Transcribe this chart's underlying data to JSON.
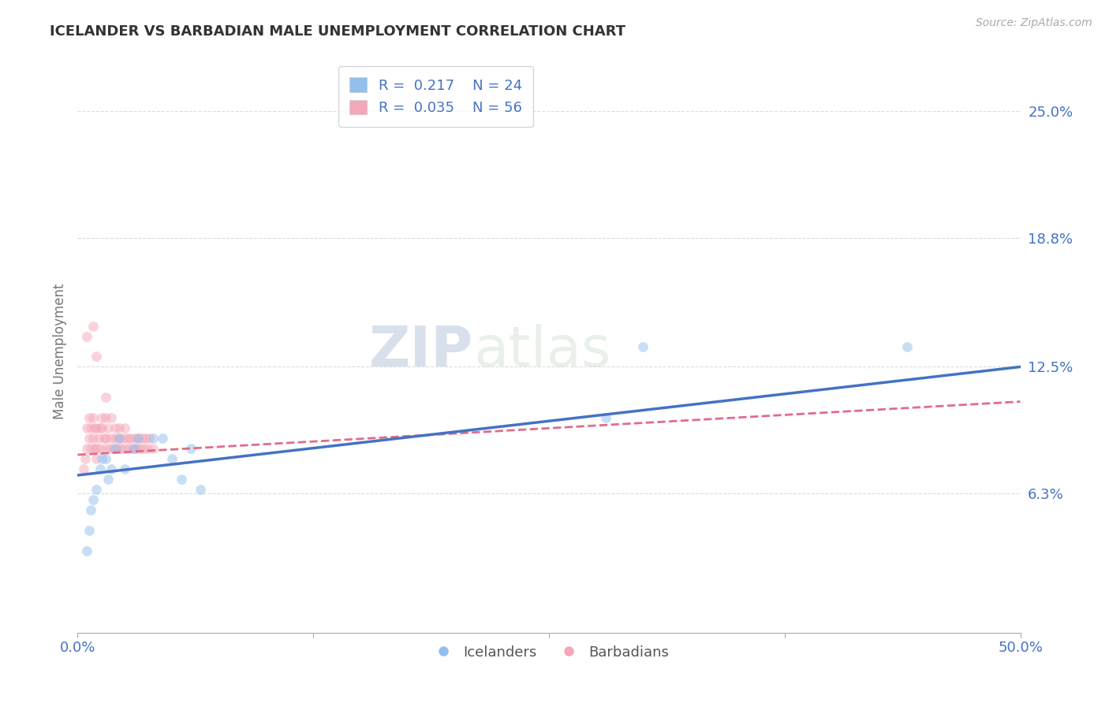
{
  "title": "ICELANDER VS BARBADIAN MALE UNEMPLOYMENT CORRELATION CHART",
  "source": "Source: ZipAtlas.com",
  "xlabel_label": "Icelanders",
  "xlabel_label2": "Barbadians",
  "ylabel": "Male Unemployment",
  "xlim": [
    0.0,
    0.5
  ],
  "ylim": [
    -0.005,
    0.27
  ],
  "xticks": [
    0.0,
    0.125,
    0.25,
    0.375,
    0.5
  ],
  "xticklabels": [
    "0.0%",
    "",
    "",
    "",
    "50.0%"
  ],
  "ytick_positions": [
    0.063,
    0.125,
    0.188,
    0.25
  ],
  "ytick_labels": [
    "6.3%",
    "12.5%",
    "18.8%",
    "25.0%"
  ],
  "icelanders_R": "0.217",
  "icelanders_N": "24",
  "barbadians_R": "0.035",
  "barbadians_N": "56",
  "icelander_color": "#92BFED",
  "barbadian_color": "#F4A7B9",
  "icelander_line_color": "#4472C4",
  "barbadian_line_color": "#E06C8A",
  "watermark_zip": "ZIP",
  "watermark_atlas": "atlas",
  "icelanders_x": [
    0.005,
    0.006,
    0.007,
    0.008,
    0.01,
    0.012,
    0.013,
    0.015,
    0.016,
    0.018,
    0.02,
    0.022,
    0.025,
    0.03,
    0.032,
    0.04,
    0.045,
    0.05,
    0.055,
    0.06,
    0.065,
    0.3,
    0.44,
    0.28
  ],
  "icelanders_y": [
    0.035,
    0.045,
    0.055,
    0.06,
    0.065,
    0.075,
    0.08,
    0.08,
    0.07,
    0.075,
    0.085,
    0.09,
    0.075,
    0.085,
    0.09,
    0.09,
    0.09,
    0.08,
    0.07,
    0.085,
    0.065,
    0.135,
    0.135,
    0.1
  ],
  "barbadians_x": [
    0.003,
    0.004,
    0.005,
    0.005,
    0.006,
    0.006,
    0.007,
    0.007,
    0.008,
    0.008,
    0.009,
    0.009,
    0.01,
    0.01,
    0.01,
    0.011,
    0.012,
    0.012,
    0.013,
    0.013,
    0.014,
    0.015,
    0.015,
    0.015,
    0.016,
    0.017,
    0.018,
    0.018,
    0.019,
    0.02,
    0.02,
    0.021,
    0.022,
    0.022,
    0.023,
    0.024,
    0.025,
    0.025,
    0.026,
    0.027,
    0.028,
    0.029,
    0.03,
    0.031,
    0.032,
    0.033,
    0.034,
    0.035,
    0.036,
    0.037,
    0.038,
    0.04,
    0.005,
    0.008,
    0.01,
    0.015
  ],
  "barbadians_y": [
    0.075,
    0.08,
    0.085,
    0.095,
    0.09,
    0.1,
    0.085,
    0.095,
    0.09,
    0.1,
    0.085,
    0.095,
    0.08,
    0.085,
    0.095,
    0.09,
    0.085,
    0.095,
    0.1,
    0.095,
    0.09,
    0.085,
    0.09,
    0.1,
    0.095,
    0.085,
    0.09,
    0.1,
    0.085,
    0.09,
    0.095,
    0.085,
    0.09,
    0.095,
    0.085,
    0.09,
    0.085,
    0.095,
    0.09,
    0.085,
    0.09,
    0.085,
    0.09,
    0.085,
    0.09,
    0.085,
    0.09,
    0.085,
    0.09,
    0.085,
    0.09,
    0.085,
    0.14,
    0.145,
    0.13,
    0.11
  ],
  "background_color": "#FFFFFF",
  "grid_color": "#DDDDDD",
  "title_color": "#333333",
  "axis_label_color": "#777777",
  "tick_label_color": "#4472C4",
  "marker_size": 85,
  "marker_alpha": 0.5,
  "legend_fontsize": 13,
  "title_fontsize": 13,
  "source_fontsize": 10,
  "icel_line_x0": 0.0,
  "icel_line_x1": 0.5,
  "icel_line_y0": 0.072,
  "icel_line_y1": 0.125,
  "barb_line_x0": 0.0,
  "barb_line_x1": 0.5,
  "barb_line_y0": 0.082,
  "barb_line_y1": 0.108
}
